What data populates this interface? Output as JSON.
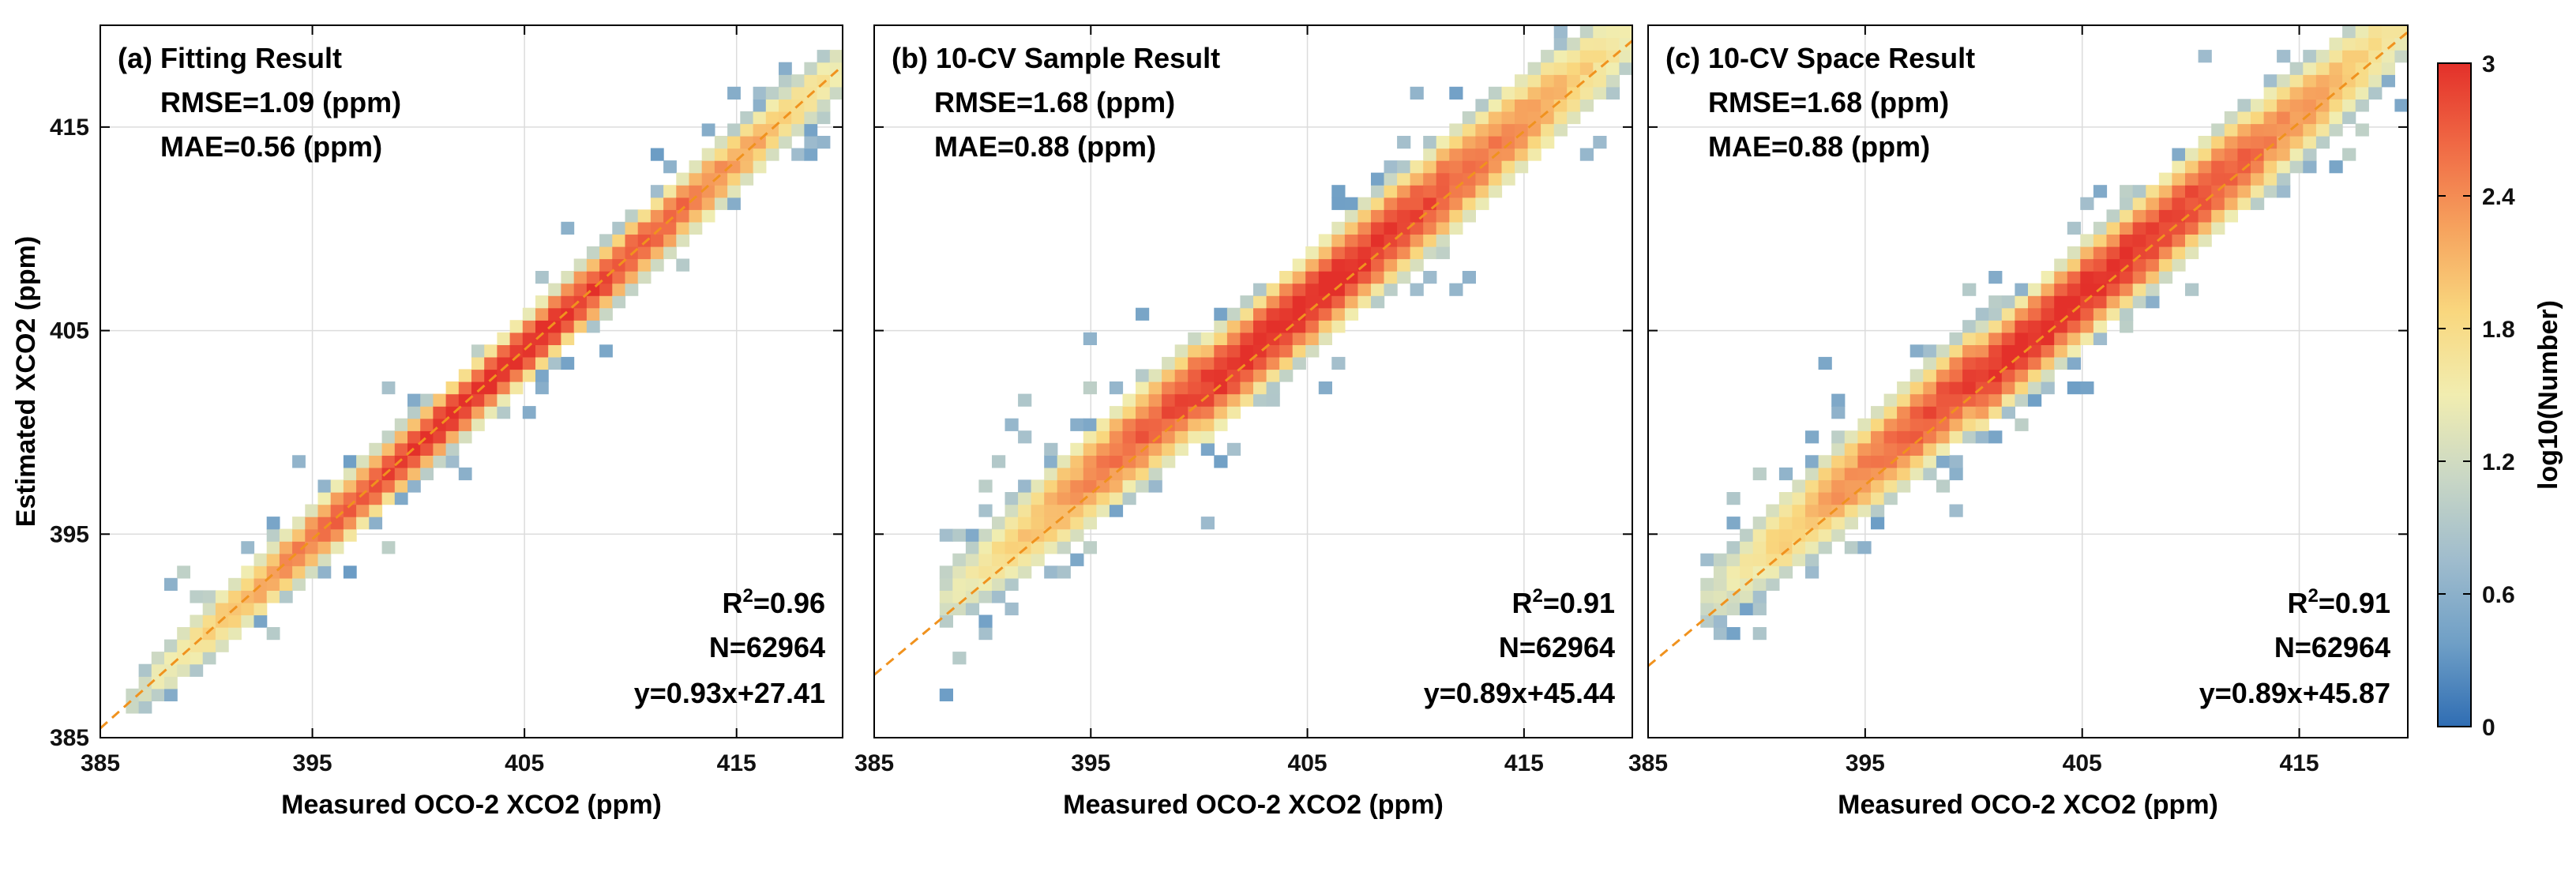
{
  "chart_data": [
    {
      "type": "heatmap",
      "title": "(a) Fitting Result",
      "xlabel": "Measured OCO-2 XCO2 (ppm)",
      "ylabel": "Estimated XCO2 (ppm)",
      "xlim": [
        385,
        420
      ],
      "ylim": [
        385,
        420
      ],
      "xticks": [
        "385",
        "395",
        "405",
        "415"
      ],
      "yticks": [
        "385",
        "395",
        "405",
        "415"
      ],
      "grid": true,
      "metrics": {
        "rmse": "RMSE=1.09 (ppm)",
        "mae": "MAE=0.56 (ppm)",
        "r2_label": "R",
        "r2_value": "=0.96",
        "n": "N=62964",
        "fit_eq": "y=0.93x+27.41"
      },
      "fit": {
        "slope": 0.93,
        "intercept": 27.41
      },
      "density": {
        "x_range": [
          386.5,
          419.5
        ],
        "spread": 0.9,
        "outlier_spread": 2.2
      }
    },
    {
      "type": "heatmap",
      "title": "(b) 10-CV Sample Result",
      "xlabel": "Measured OCO-2 XCO2 (ppm)",
      "ylabel": "",
      "xlim": [
        385,
        420
      ],
      "ylim": [
        385,
        420
      ],
      "xticks": [
        "385",
        "395",
        "405",
        "415"
      ],
      "yticks": [],
      "grid": true,
      "metrics": {
        "rmse": "RMSE=1.68 (ppm)",
        "mae": "MAE=0.88 (ppm)",
        "r2_label": "R",
        "r2_value": "=0.91",
        "n": "N=62964",
        "fit_eq": "y=0.89x+45.44"
      },
      "fit": {
        "slope": 0.89,
        "intercept": 45.44
      },
      "density": {
        "x_range": [
          388,
          419.5
        ],
        "spread": 1.35,
        "outlier_spread": 3.2
      }
    },
    {
      "type": "heatmap",
      "title": "(c) 10-CV Space Result",
      "xlabel": "Measured OCO-2 XCO2 (ppm)",
      "ylabel": "",
      "xlim": [
        385,
        420
      ],
      "ylim": [
        385,
        420
      ],
      "xticks": [
        "385",
        "395",
        "405",
        "415"
      ],
      "yticks": [],
      "grid": true,
      "metrics": {
        "rmse": "RMSE=1.68 (ppm)",
        "mae": "MAE=0.88 (ppm)",
        "r2_label": "R",
        "r2_value": "=0.91",
        "n": "N=62964",
        "fit_eq": "y=0.89x+45.87"
      },
      "fit": {
        "slope": 0.89,
        "intercept": 45.87
      },
      "density": {
        "x_range": [
          387.5,
          419.5
        ],
        "spread": 1.35,
        "outlier_spread": 3.2
      }
    }
  ],
  "colorbar": {
    "label": "log10(Number)",
    "range": [
      0,
      3
    ],
    "ticks": [
      "0",
      "0.6",
      "1.2",
      "1.8",
      "2.4",
      "3"
    ],
    "colormap": [
      "#2f6db3",
      "#6f9fc6",
      "#9fbccd",
      "#c9d7c5",
      "#f1edb0",
      "#f9d77e",
      "#f6a35e",
      "#f06a45",
      "#e3302a"
    ]
  },
  "colors": {
    "fit_line": "#f0921e",
    "grid": "#dcdcdc",
    "axis": "#000000"
  }
}
